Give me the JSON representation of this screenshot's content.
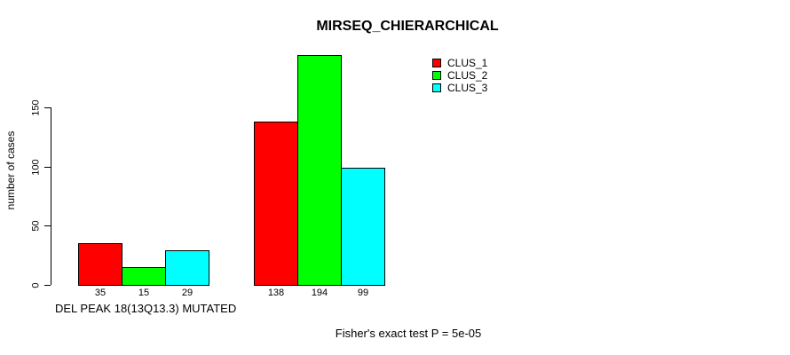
{
  "title": "MIRSEQ_CHIERARCHICAL",
  "y_axis": {
    "label": "number of cases",
    "ticks": [
      0,
      50,
      100,
      150
    ]
  },
  "x_axis": {
    "group1_label": "DEL PEAK 18(13Q13.3) MUTATED",
    "group2_label": ""
  },
  "legend": {
    "items": [
      {
        "label": "CLUS_1",
        "color": "#ff0000"
      },
      {
        "label": "CLUS_2",
        "color": "#00ff00"
      },
      {
        "label": "CLUS_3",
        "color": "#00ffff"
      }
    ]
  },
  "footer": "Fisher's exact test P = 5e-05",
  "colors": {
    "clus_1": "#ff0000",
    "clus_2": "#00ff00",
    "clus_3": "#00ffff",
    "axis": "#000000",
    "background": "#ffffff"
  },
  "chart_data": {
    "type": "bar",
    "title": "MIRSEQ_CHIERARCHICAL",
    "ylabel": "number of cases",
    "xlabel": "",
    "ylim": [
      0,
      150
    ],
    "yticks": [
      0,
      50,
      100,
      150
    ],
    "grid": false,
    "legend_position": "top-right",
    "series": [
      "CLUS_1",
      "CLUS_2",
      "CLUS_3"
    ],
    "series_colors": [
      "#ff0000",
      "#00ff00",
      "#00ffff"
    ],
    "groups": [
      {
        "label": "DEL PEAK 18(13Q13.3) MUTATED",
        "values": [
          35,
          15,
          29
        ]
      },
      {
        "label": "",
        "values": [
          138,
          194,
          99
        ]
      }
    ],
    "bar_value_labels": [
      [
        35,
        15,
        29
      ],
      [
        138,
        194,
        99
      ]
    ],
    "annotation": "Fisher's exact test P = 5e-05"
  }
}
